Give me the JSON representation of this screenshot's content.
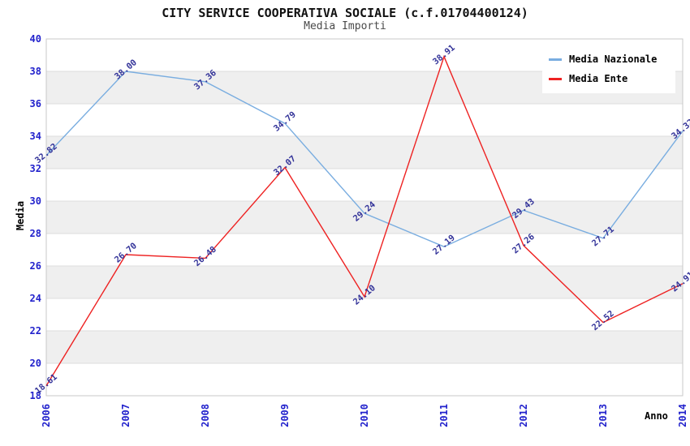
{
  "header": {
    "title": "CITY SERVICE COOPERATIVA SOCIALE (c.f.01704400124)",
    "subtitle": "Media Importi"
  },
  "chart_data": {
    "type": "line",
    "title": "CITY SERVICE COOPERATIVA SOCIALE (c.f.01704400124)",
    "subtitle": "Media Importi",
    "xlabel": "Anno",
    "ylabel": "Media",
    "categories": [
      "2006",
      "2007",
      "2008",
      "2009",
      "2010",
      "2011",
      "2012",
      "2013",
      "2014"
    ],
    "series": [
      {
        "name": "Media Nazionale",
        "color": "#79ade0",
        "values": [
          32.82,
          38.0,
          37.36,
          34.79,
          29.24,
          27.19,
          29.43,
          27.71,
          34.32
        ]
      },
      {
        "name": "Media Ente",
        "color": "#ee2222",
        "values": [
          18.61,
          26.7,
          26.48,
          32.07,
          24.1,
          38.91,
          27.26,
          22.52,
          24.91
        ]
      }
    ],
    "ylim": [
      18,
      40
    ],
    "ytick_step": 2,
    "grid": true,
    "banding": true,
    "legend_position": "top-right",
    "colors": {
      "tick_label": "#2222cc",
      "data_label": "#333399",
      "band": "#efefef",
      "gridline": "#dcdcdc",
      "plot_border": "#c9c9c9",
      "title": "#111111",
      "axis_title": "#000000"
    }
  }
}
